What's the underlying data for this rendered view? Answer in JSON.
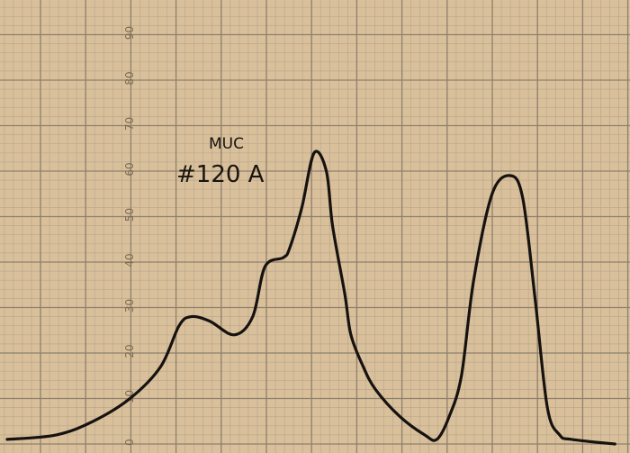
{
  "colors": {
    "paper": "#d9c09a",
    "grid_major": "#8e7f6d",
    "grid_minor": "#b9a88f",
    "trace": "#161210",
    "tick_text": "#7a6a55"
  },
  "annotation": {
    "line1": "MUC",
    "line2": "#120 A"
  },
  "chart_data": {
    "type": "line",
    "title": "",
    "xlabel": "",
    "ylabel": "",
    "ylim": [
      0,
      100
    ],
    "xlim": [
      0,
      100
    ],
    "grid": true,
    "y_ticks": [
      "0",
      "10",
      "20",
      "30",
      "40",
      "50",
      "60",
      "70",
      "80",
      "90"
    ],
    "series": [
      {
        "x": [
          0,
          8,
          14,
          20,
          25,
          28,
          30,
          33,
          37,
          40,
          42,
          45,
          46,
          48,
          50,
          52,
          53,
          55,
          56,
          58,
          60,
          64,
          68,
          70,
          72,
          74,
          76,
          79,
          82,
          84,
          86,
          88,
          90,
          92,
          99
        ],
        "y": [
          1,
          2,
          5,
          10,
          17,
          26,
          28,
          27,
          24,
          28,
          39,
          41,
          43,
          52,
          64,
          60,
          48,
          33,
          24,
          17,
          12,
          6,
          2,
          1,
          6,
          15,
          36,
          55,
          59,
          54,
          32,
          8,
          2,
          1,
          0
        ]
      }
    ]
  }
}
